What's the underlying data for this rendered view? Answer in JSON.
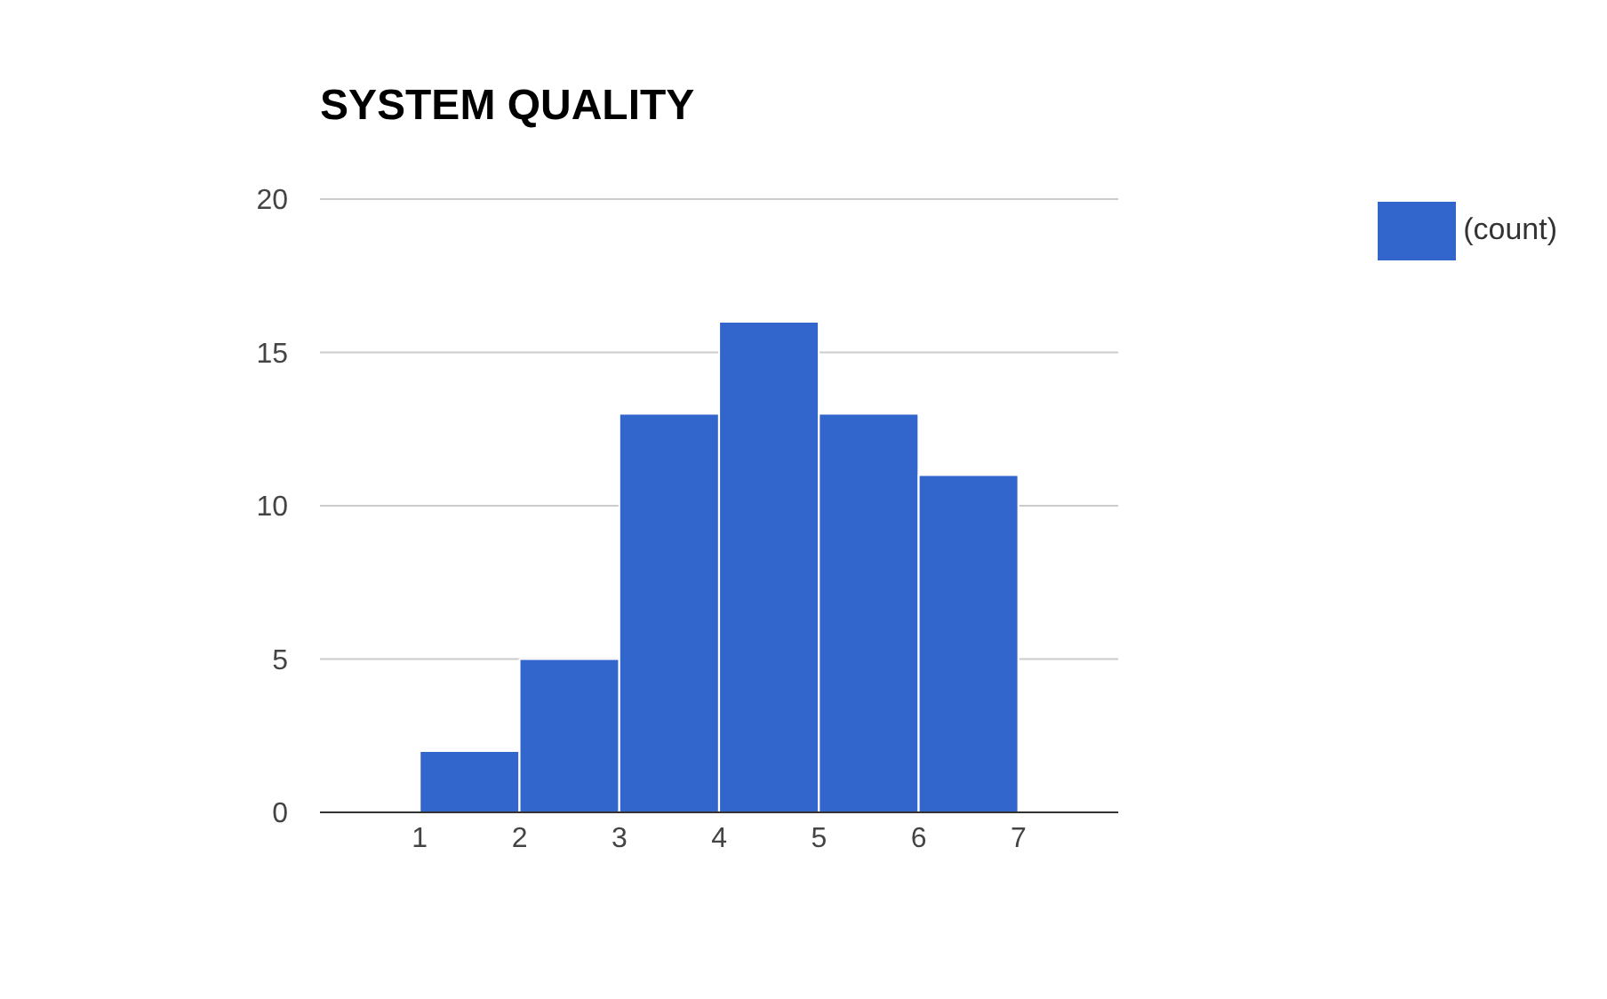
{
  "chart_data": {
    "type": "histogram",
    "title": "SYSTEM QUALITY",
    "bins": [
      1,
      2,
      3,
      4,
      5,
      6,
      7
    ],
    "series": [
      {
        "name": "(count)",
        "color": "#3366cc",
        "values": [
          2,
          5,
          13,
          16,
          13,
          11
        ]
      }
    ],
    "xlim": [
      0,
      8
    ],
    "xticks": [
      1,
      2,
      3,
      4,
      5,
      6,
      7
    ],
    "ylim": [
      0,
      20
    ],
    "yticks": [
      0,
      5,
      10,
      15,
      20
    ],
    "grid": "y",
    "legend": "top right"
  }
}
